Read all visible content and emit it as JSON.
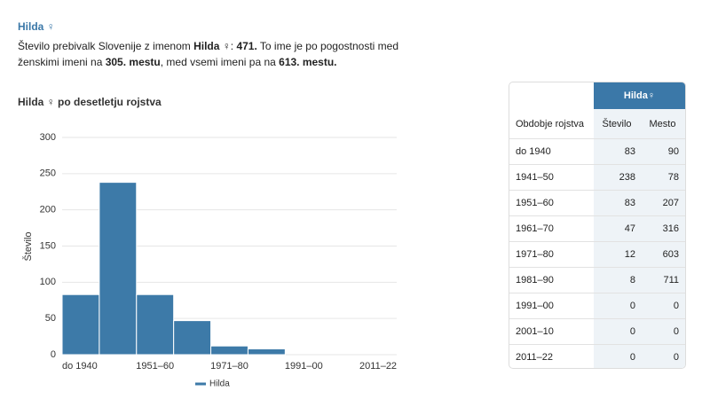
{
  "header": {
    "title": "Hilda ♀"
  },
  "intro": {
    "parts": [
      {
        "text": "Število prebivalk Slovenije z imenom ",
        "bold": false
      },
      {
        "text": "Hilda ♀",
        "bold": true
      },
      {
        "text": ": ",
        "bold": false
      },
      {
        "text": "471.",
        "bold": true
      },
      {
        "text": " To ime je po pogostnosti med ženskimi imeni na ",
        "bold": false
      },
      {
        "text": "305. mestu",
        "bold": true
      },
      {
        "text": ", med vsemi imeni pa na ",
        "bold": false
      },
      {
        "text": "613. mestu.",
        "bold": true
      }
    ]
  },
  "chart_data": {
    "type": "bar",
    "title": "Hilda ♀ po desetletju rojstva",
    "y_label": "Število",
    "categories": [
      "do 1940",
      null,
      "1951–60",
      null,
      "1971–80",
      null,
      "1991–00",
      null,
      "2011–22"
    ],
    "series": [
      {
        "name": "Hilda",
        "color": "#3d7aa8",
        "values": [
          83,
          238,
          83,
          47,
          12,
          8,
          0,
          0,
          0
        ]
      }
    ],
    "ylim": [
      0,
      300
    ],
    "yticks": [
      0,
      50,
      100,
      150,
      200,
      250,
      300
    ],
    "grid": true,
    "legend": "bottom"
  },
  "table": {
    "group_header": "Hilda♀",
    "columns": [
      "Obdobje rojstva",
      "Število",
      "Mesto"
    ],
    "rows": [
      [
        "do 1940",
        "83",
        "90"
      ],
      [
        "1941–50",
        "238",
        "78"
      ],
      [
        "1951–60",
        "83",
        "207"
      ],
      [
        "1961–70",
        "47",
        "316"
      ],
      [
        "1971–80",
        "12",
        "603"
      ],
      [
        "1981–90",
        "8",
        "711"
      ],
      [
        "1991–00",
        "0",
        "0"
      ],
      [
        "2001–10",
        "0",
        "0"
      ],
      [
        "2011–22",
        "0",
        "0"
      ]
    ]
  }
}
